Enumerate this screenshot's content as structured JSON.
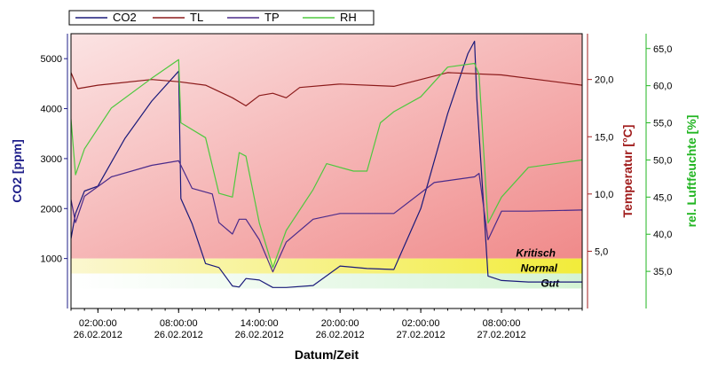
{
  "chart_data": {
    "type": "line",
    "xlabel": "Datum/Zeit",
    "x_range": [
      "2012-02-26 00:00",
      "2012-02-27 14:00"
    ],
    "x_ticks": [
      {
        "time": "02:00:00",
        "date": "26.02.2012"
      },
      {
        "time": "08:00:00",
        "date": "26.02.2012"
      },
      {
        "time": "14:00:00",
        "date": "26.02.2012"
      },
      {
        "time": "20:00:00",
        "date": "26.02.2012"
      },
      {
        "time": "02:00:00",
        "date": "27.02.2012"
      },
      {
        "time": "08:00:00",
        "date": "27.02.2012"
      }
    ],
    "axes": {
      "left": {
        "label": "CO2 [ppm]",
        "range": [
          0,
          5500
        ],
        "ticks": [
          "1000",
          "2000",
          "3000",
          "4000",
          "5000"
        ],
        "color": "#1f1f8a"
      },
      "right1": {
        "label": "Temperatur [°C]",
        "range": [
          0,
          24
        ],
        "ticks": [
          "5,0",
          "10,0",
          "15,0",
          "20,0"
        ],
        "color": "#a01c1c"
      },
      "right2": {
        "label": "rel. Luftfeuchte [%]",
        "range": [
          30,
          67
        ],
        "ticks": [
          "35,0",
          "40,0",
          "45,0",
          "50,0",
          "55,0",
          "60,0",
          "65,0"
        ],
        "color": "#22b522"
      }
    },
    "zones": [
      {
        "label": "Kritisch",
        "from": 1000,
        "to": 5500,
        "color": "#f3a0a0"
      },
      {
        "label": "Normal",
        "from": 700,
        "to": 1000,
        "color": "#f5f060"
      },
      {
        "label": "Gut",
        "from": 400,
        "to": 700,
        "color": "#d9f5d9"
      }
    ],
    "series": [
      {
        "name": "CO2",
        "axis": "left",
        "color": "#1a1a7a",
        "t": [
          "2012-02-26 00:00",
          "2012-02-26 00:20",
          "2012-02-26 01:00",
          "2012-02-26 02:00",
          "2012-02-26 04:00",
          "2012-02-26 06:00",
          "2012-02-26 08:00",
          "2012-02-26 08:10",
          "2012-02-26 09:00",
          "2012-02-26 10:00",
          "2012-02-26 11:00",
          "2012-02-26 12:00",
          "2012-02-26 12:30",
          "2012-02-26 13:00",
          "2012-02-26 14:00",
          "2012-02-26 15:00",
          "2012-02-26 16:00",
          "2012-02-26 18:00",
          "2012-02-26 20:00",
          "2012-02-26 22:00",
          "2012-02-27 00:00",
          "2012-02-27 02:00",
          "2012-02-27 04:00",
          "2012-02-27 05:30",
          "2012-02-27 06:00",
          "2012-02-27 06:10",
          "2012-02-27 07:00",
          "2012-02-27 08:00",
          "2012-02-27 10:00",
          "2012-02-27 14:00"
        ],
        "y": [
          1400,
          1900,
          2350,
          2450,
          3400,
          4150,
          4750,
          2200,
          1700,
          900,
          820,
          450,
          430,
          600,
          570,
          420,
          420,
          460,
          850,
          800,
          780,
          2000,
          3900,
          5100,
          5350,
          4200,
          650,
          560,
          530,
          530
        ]
      },
      {
        "name": "TL",
        "axis": "right1",
        "color": "#8b1a1a",
        "t": [
          "2012-02-26 00:00",
          "2012-02-26 00:30",
          "2012-02-26 02:00",
          "2012-02-26 06:00",
          "2012-02-26 08:00",
          "2012-02-26 10:00",
          "2012-02-26 12:00",
          "2012-02-26 13:00",
          "2012-02-26 14:00",
          "2012-02-26 15:00",
          "2012-02-26 16:00",
          "2012-02-26 17:00",
          "2012-02-26 20:00",
          "2012-02-27 00:00",
          "2012-02-27 04:00",
          "2012-02-27 08:00",
          "2012-02-27 14:00"
        ],
        "y": [
          20.6,
          19.2,
          19.5,
          20.0,
          19.8,
          19.5,
          18.4,
          17.7,
          18.6,
          18.8,
          18.4,
          19.3,
          19.6,
          19.4,
          20.6,
          20.4,
          19.5
        ]
      },
      {
        "name": "TP",
        "axis": "right1",
        "color": "#4a2a8a",
        "t": [
          "2012-02-26 00:00",
          "2012-02-26 00:20",
          "2012-02-26 01:00",
          "2012-02-26 03:00",
          "2012-02-26 06:00",
          "2012-02-26 08:00",
          "2012-02-26 09:00",
          "2012-02-26 10:30",
          "2012-02-26 11:00",
          "2012-02-26 12:00",
          "2012-02-26 12:30",
          "2012-02-26 13:00",
          "2012-02-26 14:00",
          "2012-02-26 15:00",
          "2012-02-26 16:00",
          "2012-02-26 18:00",
          "2012-02-26 20:00",
          "2012-02-26 22:00",
          "2012-02-27 00:00",
          "2012-02-27 03:00",
          "2012-02-27 06:00",
          "2012-02-27 06:20",
          "2012-02-27 07:00",
          "2012-02-27 08:00",
          "2012-02-27 10:00",
          "2012-02-27 14:00"
        ],
        "y": [
          9.5,
          7.5,
          9.8,
          11.5,
          12.5,
          12.9,
          10.5,
          10.0,
          7.5,
          6.5,
          7.8,
          7.8,
          6.0,
          3.2,
          5.8,
          7.8,
          8.3,
          8.3,
          8.3,
          11.0,
          11.5,
          11.8,
          6.0,
          8.5,
          8.5,
          8.6
        ]
      },
      {
        "name": "RH",
        "axis": "right2",
        "color": "#4ec83e",
        "t": [
          "2012-02-26 00:00",
          "2012-02-26 00:20",
          "2012-02-26 01:00",
          "2012-02-26 03:00",
          "2012-02-26 06:00",
          "2012-02-26 08:00",
          "2012-02-26 08:10",
          "2012-02-26 10:00",
          "2012-02-26 11:00",
          "2012-02-26 12:00",
          "2012-02-26 12:30",
          "2012-02-26 13:00",
          "2012-02-26 14:00",
          "2012-02-26 15:00",
          "2012-02-26 16:00",
          "2012-02-26 18:00",
          "2012-02-26 19:00",
          "2012-02-26 21:00",
          "2012-02-26 22:00",
          "2012-02-26 23:00",
          "2012-02-27 00:00",
          "2012-02-27 02:00",
          "2012-02-27 04:00",
          "2012-02-27 06:00",
          "2012-02-27 06:20",
          "2012-02-27 07:00",
          "2012-02-27 08:00",
          "2012-02-27 10:00",
          "2012-02-27 14:00"
        ],
        "y": [
          55.5,
          48.0,
          51.5,
          57.0,
          61.0,
          63.5,
          55.0,
          53.0,
          45.5,
          45.0,
          51.0,
          50.5,
          41.5,
          35.5,
          40.5,
          46.0,
          49.5,
          48.5,
          48.5,
          55.0,
          56.5,
          58.5,
          62.5,
          63.0,
          61.5,
          41.5,
          45.0,
          49.0,
          50.0
        ]
      }
    ],
    "grid": false,
    "legend": "top-left"
  }
}
